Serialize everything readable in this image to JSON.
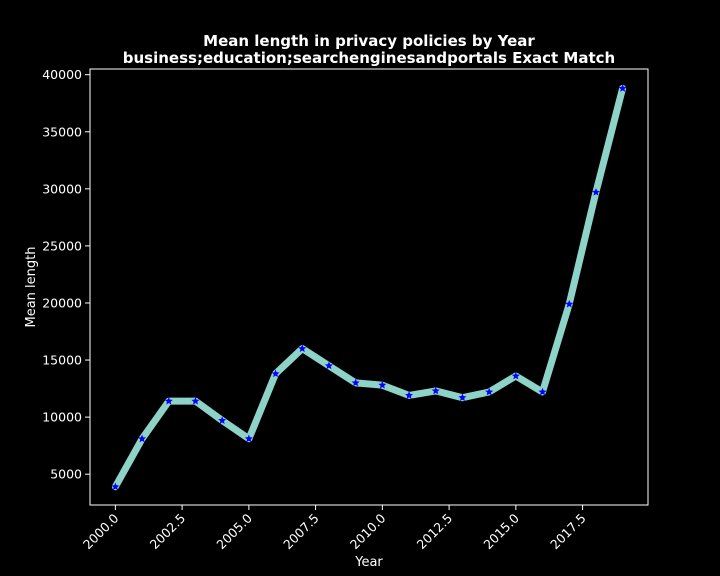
{
  "chart_data": {
    "type": "line",
    "title": "Mean length in privacy policies by Year",
    "subtitle": "business;education;searchenginesandportals Exact Match",
    "xlabel": "Year",
    "ylabel": "Mean length",
    "xlim": [
      1999.05,
      2019.95
    ],
    "ylim": [
      2300,
      40500
    ],
    "x_ticks": [
      "2000.0",
      "2002.5",
      "2005.0",
      "2007.5",
      "2010.0",
      "2012.5",
      "2015.0",
      "2017.5"
    ],
    "y_ticks": [
      "5000",
      "10000",
      "15000",
      "20000",
      "25000",
      "30000",
      "35000",
      "40000"
    ],
    "grid": false,
    "line_color": "#8dd3c7",
    "marker_color": "#0000ff",
    "marker": "star",
    "series": [
      {
        "x": [
          2000,
          2001,
          2002,
          2003,
          2004,
          2005,
          2006,
          2007,
          2008,
          2009,
          2010,
          2011,
          2012,
          2013,
          2014,
          2015,
          2016,
          2017,
          2018,
          2019
        ],
        "values": [
          3900,
          8100,
          11400,
          11400,
          9700,
          8100,
          13800,
          16000,
          14500,
          13000,
          12800,
          11900,
          12300,
          11700,
          12200,
          13600,
          12200,
          19900,
          29700,
          38800
        ]
      }
    ]
  }
}
